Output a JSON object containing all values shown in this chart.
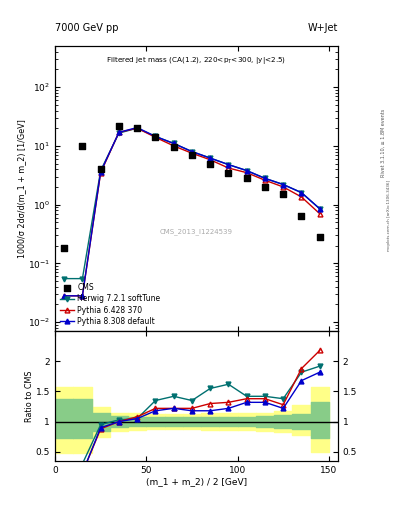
{
  "title_top_left": "7000 GeV pp",
  "title_top_right": "W+Jet",
  "plot_title": "Filtered jet mass (CA(1.2), 220<p_{T}<300, |y|<2.5)",
  "ylabel_main": "1000/σ 2dσ/d(m_1 + m_2) [1/GeV]",
  "ylabel_ratio": "Ratio to CMS",
  "xlabel": "(m_1 + m_2) / 2 [GeV]",
  "watermark": "CMS_2013_I1224539",
  "right_label": "mcplots.cern.ch [arXiv:1306.3436]",
  "right_label2": "Rivet 3.1.10, ≥ 1.8M events",
  "xlim": [
    0,
    155
  ],
  "ylim_main": [
    0.007,
    500
  ],
  "ylim_ratio": [
    0.35,
    2.5
  ],
  "cms_x": [
    5,
    15,
    25,
    35,
    45,
    55,
    65,
    75,
    85,
    95,
    105,
    115,
    125,
    135,
    145
  ],
  "cms_y": [
    0.18,
    10.0,
    4.0,
    22.0,
    20.0,
    14.0,
    9.5,
    7.0,
    5.0,
    3.5,
    2.8,
    2.0,
    1.5,
    0.65,
    0.28
  ],
  "herwig_x": [
    5,
    15,
    25,
    35,
    45,
    55,
    65,
    75,
    85,
    95,
    105,
    115,
    125,
    135,
    145
  ],
  "herwig_y": [
    0.055,
    0.055,
    3.8,
    16.5,
    20.0,
    14.5,
    11.0,
    8.0,
    6.2,
    4.8,
    3.8,
    2.8,
    2.2,
    1.6,
    0.85
  ],
  "herwig_color": "#007070",
  "pythia6_x": [
    5,
    15,
    25,
    35,
    45,
    55,
    65,
    75,
    85,
    95,
    105,
    115,
    125,
    135,
    145
  ],
  "pythia6_y": [
    0.028,
    0.028,
    3.5,
    17.0,
    20.0,
    14.0,
    10.0,
    7.5,
    5.8,
    4.2,
    3.5,
    2.6,
    2.0,
    1.35,
    0.7
  ],
  "pythia6_color": "#cc0000",
  "pythia8_x": [
    5,
    15,
    25,
    35,
    45,
    55,
    65,
    75,
    85,
    95,
    105,
    115,
    125,
    135,
    145
  ],
  "pythia8_y": [
    0.028,
    0.028,
    3.6,
    17.0,
    20.5,
    14.5,
    11.0,
    8.0,
    6.2,
    4.8,
    3.8,
    2.8,
    2.2,
    1.6,
    0.85
  ],
  "pythia8_color": "#0000cc",
  "herwig_ratio": [
    0.3,
    0.3,
    0.95,
    1.03,
    1.05,
    1.35,
    1.42,
    1.35,
    1.55,
    1.62,
    1.42,
    1.42,
    1.38,
    1.82,
    1.92
  ],
  "pythia6_ratio": [
    0.15,
    0.15,
    0.88,
    1.0,
    1.08,
    1.22,
    1.22,
    1.22,
    1.3,
    1.32,
    1.38,
    1.38,
    1.28,
    1.88,
    2.18
  ],
  "pythia8_ratio": [
    0.15,
    0.15,
    0.9,
    1.0,
    1.05,
    1.18,
    1.22,
    1.18,
    1.18,
    1.22,
    1.32,
    1.32,
    1.22,
    1.68,
    1.82
  ],
  "green_band_lo": [
    0.72,
    0.72,
    0.85,
    0.91,
    0.92,
    0.93,
    0.93,
    0.93,
    0.92,
    0.92,
    0.92,
    0.91,
    0.89,
    0.87,
    0.72
  ],
  "green_band_hi": [
    1.38,
    1.38,
    1.15,
    1.09,
    1.08,
    1.07,
    1.07,
    1.07,
    1.08,
    1.08,
    1.08,
    1.09,
    1.11,
    1.13,
    1.32
  ],
  "yellow_band_lo": [
    0.48,
    0.48,
    0.75,
    0.85,
    0.86,
    0.87,
    0.87,
    0.87,
    0.86,
    0.86,
    0.86,
    0.85,
    0.82,
    0.78,
    0.5
  ],
  "yellow_band_hi": [
    1.58,
    1.58,
    1.25,
    1.15,
    1.14,
    1.13,
    1.13,
    1.13,
    1.14,
    1.14,
    1.14,
    1.15,
    1.18,
    1.28,
    1.58
  ],
  "bin_edges": [
    0,
    10,
    20,
    30,
    40,
    50,
    60,
    70,
    80,
    90,
    100,
    110,
    120,
    130,
    140,
    150
  ]
}
